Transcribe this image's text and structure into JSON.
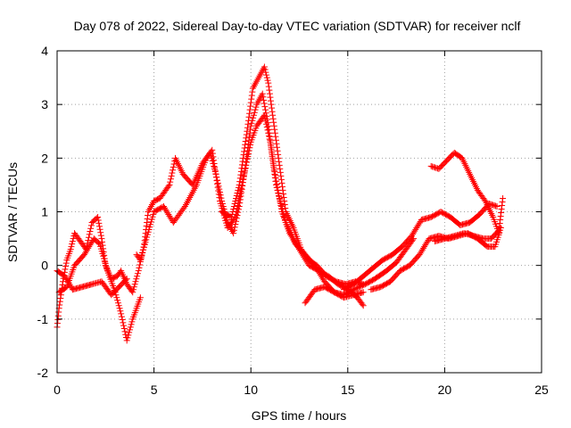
{
  "chart_data": {
    "type": "scatter",
    "title": "Day 078 of 2022, Sidereal Day-to-day VTEC variation (SDTVAR) for receiver nclf",
    "xlabel": "GPS time / hours",
    "ylabel": "SDTVAR / TECUs",
    "xlim": [
      0,
      25
    ],
    "ylim": [
      -2,
      4
    ],
    "xticks": [
      0,
      5,
      10,
      15,
      20,
      25
    ],
    "yticks": [
      -2,
      -1,
      0,
      1,
      2,
      3,
      4
    ],
    "grid": true,
    "marker": "+",
    "series": [
      {
        "name": "SDTVAR",
        "color": "#ff0000",
        "traces": [
          [
            [
              0.0,
              -1.15
            ],
            [
              0.1,
              -0.8
            ],
            [
              0.3,
              -0.3
            ],
            [
              0.5,
              0.1
            ],
            [
              0.7,
              0.3
            ],
            [
              0.9,
              0.6
            ],
            [
              1.2,
              0.45
            ],
            [
              1.5,
              0.3
            ],
            [
              1.8,
              0.8
            ],
            [
              2.1,
              0.9
            ],
            [
              2.3,
              0.5
            ],
            [
              2.5,
              0.0
            ],
            [
              2.8,
              -0.25
            ],
            [
              3.1,
              -0.2
            ],
            [
              3.3,
              -0.1
            ],
            [
              3.6,
              -0.35
            ],
            [
              3.9,
              -0.5
            ],
            [
              4.2,
              -0.1
            ],
            [
              4.5,
              0.4
            ],
            [
              4.7,
              1.0
            ],
            [
              5.0,
              1.2
            ],
            [
              5.3,
              1.25
            ],
            [
              5.6,
              1.4
            ],
            [
              5.8,
              1.5
            ],
            [
              6.1,
              2.0
            ],
            [
              6.5,
              1.7
            ],
            [
              7.0,
              1.5
            ],
            [
              7.5,
              1.9
            ],
            [
              7.9,
              2.1
            ],
            [
              8.2,
              1.7
            ],
            [
              8.5,
              1.2
            ],
            [
              8.8,
              0.8
            ],
            [
              9.1,
              0.6
            ],
            [
              9.4,
              1.1
            ],
            [
              9.7,
              1.8
            ],
            [
              10.0,
              2.6
            ],
            [
              10.3,
              3.0
            ],
            [
              10.6,
              3.2
            ],
            [
              10.9,
              2.6
            ],
            [
              11.2,
              1.8
            ],
            [
              11.6,
              1.0
            ],
            [
              12.0,
              0.6
            ],
            [
              12.5,
              0.3
            ],
            [
              13.0,
              0.0
            ],
            [
              13.5,
              -0.1
            ],
            [
              14.0,
              -0.2
            ],
            [
              14.5,
              -0.35
            ],
            [
              15.0,
              -0.45
            ],
            [
              15.5,
              -0.6
            ],
            [
              15.8,
              -0.75
            ]
          ],
          [
            [
              0.1,
              -0.5
            ],
            [
              0.5,
              -0.4
            ],
            [
              0.9,
              0.0
            ],
            [
              1.4,
              0.2
            ],
            [
              1.9,
              0.5
            ],
            [
              2.2,
              0.4
            ],
            [
              2.6,
              -0.1
            ],
            [
              3.0,
              -0.5
            ],
            [
              3.3,
              -0.9
            ],
            [
              3.6,
              -1.4
            ],
            [
              3.9,
              -1.0
            ],
            [
              4.3,
              -0.6
            ]
          ],
          [
            [
              0.0,
              -0.1
            ],
            [
              0.4,
              -0.2
            ],
            [
              0.8,
              -0.45
            ],
            [
              1.3,
              -0.4
            ],
            [
              1.8,
              -0.35
            ],
            [
              2.3,
              -0.3
            ],
            [
              2.8,
              -0.55
            ],
            [
              3.2,
              -0.4
            ],
            [
              3.6,
              -0.25
            ]
          ],
          [
            [
              4.1,
              0.2
            ],
            [
              4.3,
              0.1
            ],
            [
              5.0,
              1.0
            ],
            [
              5.5,
              1.1
            ],
            [
              6.0,
              0.8
            ],
            [
              6.6,
              1.1
            ],
            [
              7.2,
              1.5
            ],
            [
              7.7,
              2.0
            ],
            [
              8.0,
              2.15
            ],
            [
              8.4,
              1.2
            ],
            [
              8.8,
              0.7
            ],
            [
              9.2,
              0.9
            ],
            [
              9.6,
              1.6
            ],
            [
              10.0,
              2.3
            ],
            [
              10.3,
              2.6
            ],
            [
              10.7,
              2.8
            ],
            [
              11.0,
              2.3
            ],
            [
              11.3,
              1.5
            ],
            [
              11.8,
              0.8
            ],
            [
              12.3,
              0.4
            ],
            [
              12.8,
              0.2
            ],
            [
              13.3,
              0.0
            ],
            [
              13.8,
              -0.3
            ],
            [
              14.3,
              -0.5
            ],
            [
              14.8,
              -0.6
            ],
            [
              15.3,
              -0.55
            ],
            [
              15.8,
              -0.5
            ]
          ],
          [
            [
              8.5,
              1.0
            ],
            [
              9.0,
              0.9
            ],
            [
              9.4,
              1.5
            ],
            [
              9.8,
              2.5
            ],
            [
              10.1,
              3.3
            ],
            [
              10.4,
              3.5
            ],
            [
              10.7,
              3.7
            ],
            [
              10.9,
              3.4
            ],
            [
              11.2,
              2.6
            ],
            [
              11.5,
              1.8
            ],
            [
              11.8,
              1.0
            ],
            [
              12.2,
              0.7
            ],
            [
              12.6,
              0.3
            ],
            [
              13.0,
              0.1
            ],
            [
              13.4,
              0.0
            ],
            [
              13.9,
              -0.2
            ],
            [
              14.4,
              -0.3
            ],
            [
              14.9,
              -0.35
            ],
            [
              15.4,
              -0.3
            ],
            [
              15.8,
              -0.35
            ]
          ],
          [
            [
              12.8,
              -0.7
            ],
            [
              13.3,
              -0.45
            ],
            [
              13.8,
              -0.4
            ],
            [
              14.3,
              -0.5
            ],
            [
              14.8,
              -0.55
            ],
            [
              15.3,
              -0.45
            ],
            [
              15.9,
              -0.35
            ],
            [
              16.4,
              -0.25
            ],
            [
              17.0,
              -0.1
            ],
            [
              17.5,
              0.05
            ],
            [
              18.0,
              0.3
            ],
            [
              18.4,
              0.5
            ]
          ],
          [
            [
              14.8,
              -0.45
            ],
            [
              15.3,
              -0.35
            ],
            [
              15.8,
              -0.2
            ],
            [
              16.3,
              -0.05
            ],
            [
              16.8,
              0.1
            ],
            [
              17.3,
              0.2
            ],
            [
              17.8,
              0.35
            ],
            [
              18.3,
              0.55
            ],
            [
              18.8,
              0.85
            ],
            [
              19.3,
              0.9
            ],
            [
              19.8,
              1.0
            ],
            [
              20.3,
              0.9
            ],
            [
              20.8,
              0.75
            ],
            [
              21.3,
              0.8
            ],
            [
              21.8,
              0.95
            ],
            [
              22.3,
              1.15
            ],
            [
              22.7,
              1.1
            ]
          ],
          [
            [
              16.2,
              -0.45
            ],
            [
              16.7,
              -0.4
            ],
            [
              17.2,
              -0.3
            ],
            [
              17.7,
              -0.1
            ],
            [
              18.2,
              0.0
            ],
            [
              18.7,
              0.2
            ],
            [
              19.2,
              0.5
            ],
            [
              19.7,
              0.55
            ],
            [
              20.2,
              0.5
            ],
            [
              20.7,
              0.55
            ],
            [
              21.2,
              0.6
            ],
            [
              21.7,
              0.5
            ],
            [
              22.2,
              0.35
            ],
            [
              22.6,
              0.35
            ],
            [
              22.9,
              0.7
            ]
          ],
          [
            [
              19.3,
              1.85
            ],
            [
              19.7,
              1.8
            ],
            [
              20.1,
              1.95
            ],
            [
              20.5,
              2.1
            ],
            [
              20.9,
              2.0
            ],
            [
              21.3,
              1.7
            ],
            [
              21.7,
              1.4
            ],
            [
              22.1,
              1.2
            ],
            [
              22.5,
              0.9
            ],
            [
              22.8,
              0.6
            ]
          ],
          [
            [
              19.5,
              0.45
            ],
            [
              20.0,
              0.5
            ],
            [
              20.5,
              0.55
            ],
            [
              21.0,
              0.6
            ],
            [
              21.5,
              0.55
            ],
            [
              22.0,
              0.5
            ],
            [
              22.4,
              0.5
            ],
            [
              22.8,
              0.65
            ],
            [
              23.0,
              1.25
            ]
          ]
        ]
      }
    ]
  }
}
